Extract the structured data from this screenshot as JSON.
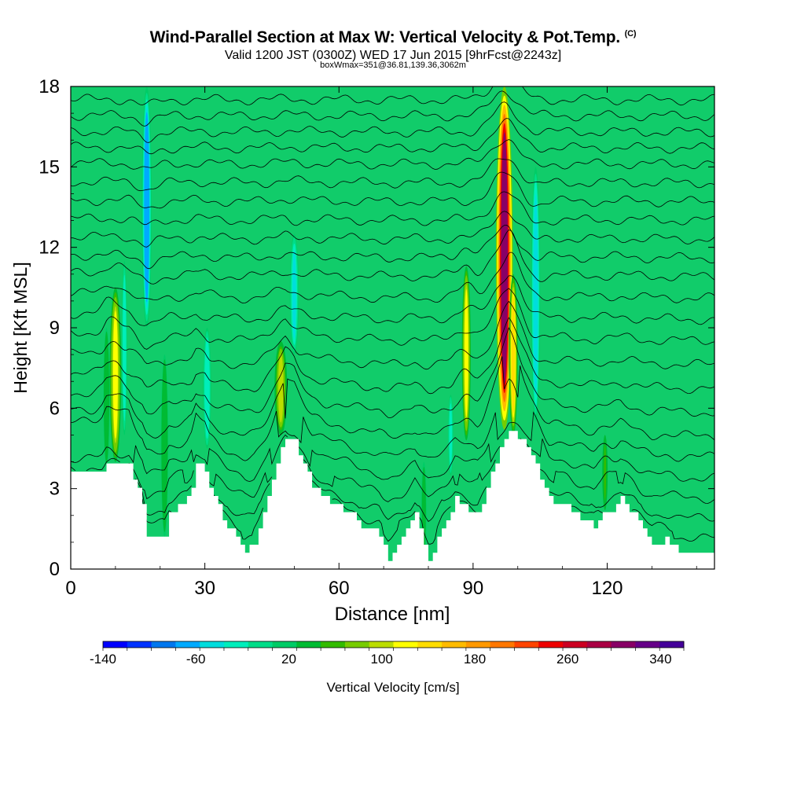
{
  "header": {
    "title": "Wind-Parallel Section at Max W: Vertical Velocity & Pot.Temp.",
    "title_mark": "(C)",
    "subtitle": "Valid 1200 JST (0300Z) WED 17 Jun 2015 [9hrFcst@2243z]",
    "subtitle2": "boxWmax=351@36.81,139.36,3062m"
  },
  "chart_data": {
    "type": "heatmap",
    "title": "Wind-Parallel Section at Max W: Vertical Velocity & Pot.Temp.",
    "xlabel": "Distance [nm]",
    "ylabel": "Height [Kft MSL]",
    "xlim": [
      0,
      144
    ],
    "ylim": [
      0,
      18
    ],
    "x_ticks": [
      "0",
      "30",
      "60",
      "90",
      "120"
    ],
    "x_tick_values": [
      0,
      30,
      60,
      90,
      120
    ],
    "y_ticks": [
      "0",
      "3",
      "6",
      "9",
      "12",
      "15",
      "18"
    ],
    "y_tick_values": [
      0,
      3,
      6,
      9,
      12,
      15,
      18
    ],
    "colorbar": {
      "label": "Vertical Velocity [cm/s]",
      "tick_labels": [
        "-140",
        "-60",
        "20",
        "100",
        "180",
        "260",
        "340"
      ],
      "tick_values": [
        -140,
        -60,
        20,
        100,
        180,
        260,
        340
      ],
      "range": [
        -140,
        360
      ],
      "colors": [
        "#0000ff",
        "#0033ff",
        "#0077ee",
        "#00aaff",
        "#00dddd",
        "#00eebb",
        "#00dd88",
        "#00cc66",
        "#00bb33",
        "#33bb00",
        "#77cc00",
        "#bbdd00",
        "#ffff00",
        "#ffdd00",
        "#ffbb00",
        "#ff9900",
        "#ff7700",
        "#ff4400",
        "#ee0000",
        "#cc0022",
        "#aa0044",
        "#880066",
        "#660088",
        "#440099"
      ]
    },
    "background_w": 22,
    "terrain": {
      "x": [
        0,
        7,
        8,
        13,
        16,
        17,
        21,
        22,
        26,
        27,
        28,
        30,
        31,
        35,
        39,
        41,
        43,
        46,
        48,
        50,
        52,
        54,
        57,
        60,
        63,
        65,
        69,
        71,
        74,
        77,
        80,
        81,
        83,
        86,
        88,
        91,
        94,
        96,
        98,
        102,
        104,
        107,
        111,
        114,
        117,
        118,
        121,
        123,
        126,
        128,
        130,
        133,
        136,
        140,
        144
      ],
      "height": [
        3.6,
        3.6,
        3.9,
        3.9,
        2.5,
        1.1,
        1.1,
        2.0,
        2.6,
        3.0,
        3.9,
        3.7,
        3.0,
        1.6,
        0.7,
        0.9,
        2.2,
        3.9,
        4.9,
        4.7,
        3.9,
        3.1,
        2.6,
        2.4,
        2.0,
        1.6,
        1.3,
        0.4,
        1.1,
        2.0,
        0.3,
        0.6,
        1.6,
        2.6,
        2.3,
        2.0,
        3.5,
        4.5,
        5.3,
        4.5,
        3.8,
        2.6,
        2.3,
        1.9,
        1.6,
        1.9,
        2.2,
        2.6,
        2.0,
        1.4,
        0.9,
        1.1,
        0.7,
        0.6,
        0.6
      ]
    },
    "updrafts": [
      {
        "x": 10.0,
        "bottom": 4.0,
        "top": 10.5,
        "halfwidth": 1.3,
        "w_max": 120
      },
      {
        "x": 47.0,
        "bottom": 5.0,
        "top": 8.5,
        "halfwidth": 1.4,
        "w_max": 95
      },
      {
        "x": 88.5,
        "bottom": 4.8,
        "top": 11.3,
        "halfwidth": 1.0,
        "w_max": 120
      },
      {
        "x": 97.0,
        "bottom": 5.2,
        "top": 18.0,
        "halfwidth": 1.9,
        "w_max": 300
      },
      {
        "x": 99.0,
        "bottom": 5.0,
        "top": 11.0,
        "halfwidth": 1.0,
        "w_max": 140
      },
      {
        "x": 119.5,
        "bottom": 2.2,
        "top": 5.0,
        "halfwidth": 0.6,
        "w_max": 50
      },
      {
        "x": 21.0,
        "bottom": 1.2,
        "top": 8.0,
        "halfwidth": 0.8,
        "w_max": 40
      },
      {
        "x": 8.0,
        "bottom": 3.8,
        "top": 9.0,
        "halfwidth": 0.7,
        "w_max": 40
      },
      {
        "x": 79.0,
        "bottom": 0.4,
        "top": 4.0,
        "halfwidth": 0.6,
        "w_max": 35
      }
    ],
    "downdrafts": [
      {
        "x": 17.0,
        "bottom": 9.0,
        "top": 18.0,
        "halfwidth": 1.1,
        "w_max": -75
      },
      {
        "x": 50.0,
        "bottom": 8.0,
        "top": 12.5,
        "halfwidth": 1.0,
        "w_max": -45
      },
      {
        "x": 104.0,
        "bottom": 5.5,
        "top": 15.0,
        "halfwidth": 1.0,
        "w_max": -55
      },
      {
        "x": 30.5,
        "bottom": 4.5,
        "top": 9.0,
        "halfwidth": 0.9,
        "w_max": -35
      },
      {
        "x": 12.0,
        "bottom": 5.0,
        "top": 11.5,
        "halfwidth": 0.6,
        "w_max": -35
      },
      {
        "x": 85.0,
        "bottom": 3.5,
        "top": 6.5,
        "halfwidth": 0.6,
        "w_max": -30
      }
    ],
    "theta_levels": [
      0.9,
      1.7,
      2.5,
      3.3,
      4.1,
      4.9,
      5.8,
      6.7,
      7.6,
      8.5,
      9.3,
      10.1,
      10.9,
      11.6,
      12.3,
      13.0,
      13.7,
      14.4,
      15.1,
      15.7,
      16.3,
      16.9,
      17.5
    ]
  }
}
